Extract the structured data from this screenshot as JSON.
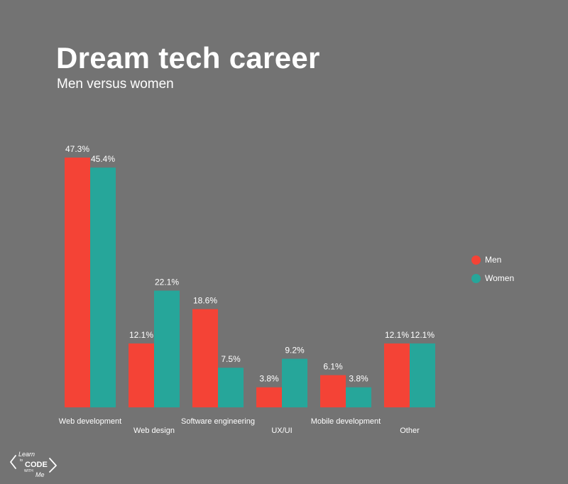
{
  "header": {
    "title": "Dream tech career",
    "subtitle": "Men versus women"
  },
  "legend": [
    {
      "label": "Men",
      "color": "#f44336"
    },
    {
      "label": "Women",
      "color": "#26a69a"
    }
  ],
  "logo": {
    "text_top": "Learn",
    "text_small": "to",
    "text_main": "CODE",
    "text_with": "WITH",
    "text_me": "Me"
  },
  "chart_data": {
    "type": "bar",
    "categories": [
      "Web development",
      "Web design",
      "Software engineering",
      "UX/UI",
      "Mobile development",
      "Other"
    ],
    "series": [
      {
        "name": "Men",
        "values": [
          47.3,
          12.1,
          18.6,
          3.8,
          6.1,
          12.1
        ],
        "labels": [
          "47.3%",
          "12.1%",
          "18.6%",
          "3.8%",
          "6.1%",
          "12.1%"
        ],
        "color": "#f44336"
      },
      {
        "name": "Women",
        "values": [
          45.4,
          22.1,
          7.5,
          9.2,
          3.8,
          12.1
        ],
        "labels": [
          "45.4%",
          "22.1%",
          "7.5%",
          "9.2%",
          "3.8%",
          "12.1%"
        ],
        "color": "#26a69a"
      }
    ],
    "ylim": [
      0,
      47.3
    ],
    "grid": false,
    "legend_position": "right"
  }
}
